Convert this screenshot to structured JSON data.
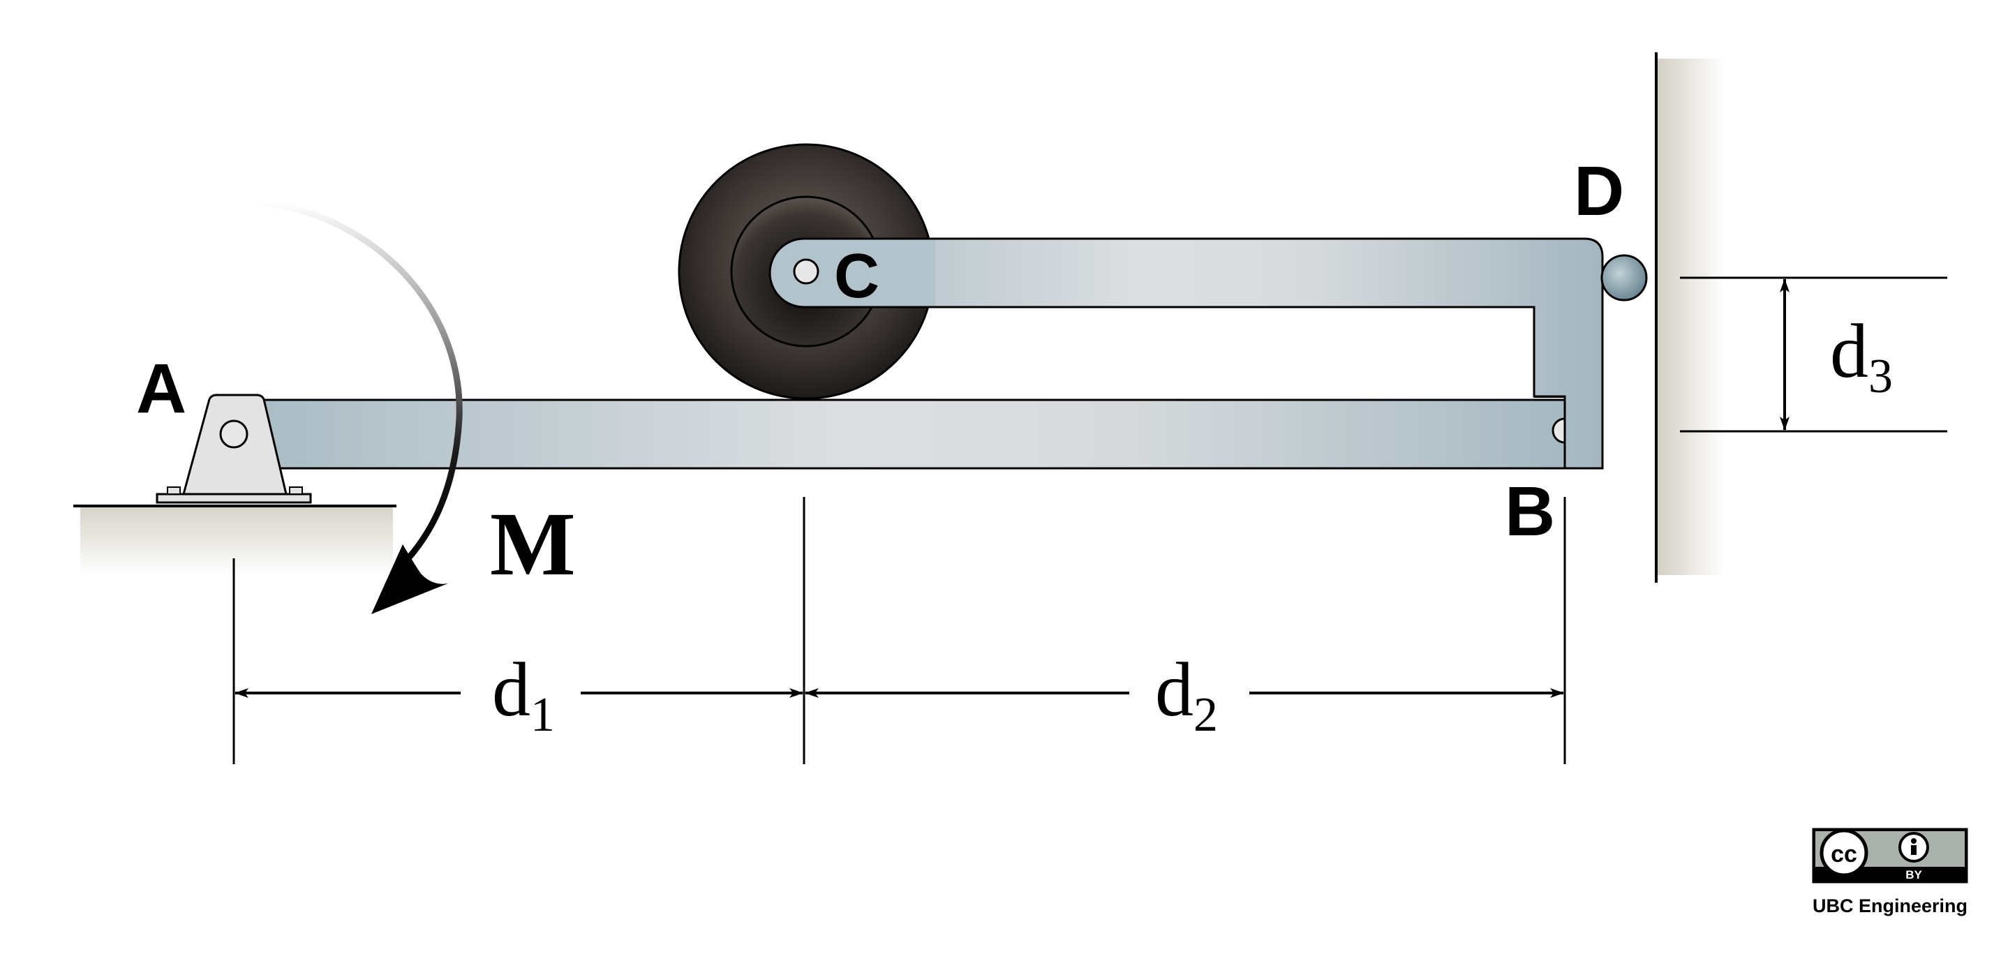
{
  "diagram": {
    "points": {
      "a": "A",
      "b": "B",
      "c": "C",
      "d": "D"
    },
    "moment": "M",
    "dimensions": {
      "d1": {
        "base": "d",
        "sub": "1"
      },
      "d2": {
        "base": "d",
        "sub": "2"
      },
      "d3": {
        "base": "d",
        "sub": "3"
      }
    }
  },
  "license": {
    "badge_cc": "cc",
    "badge_by": "BY",
    "credit": "UBC Engineering"
  },
  "colors": {
    "link_light": "#dcdfe1",
    "link_dark": "#a9bbc4",
    "wheel": "#2a2624",
    "support": "#e3e3e3",
    "ground": "#d8d5cc",
    "wall": "#d9d5cc"
  }
}
